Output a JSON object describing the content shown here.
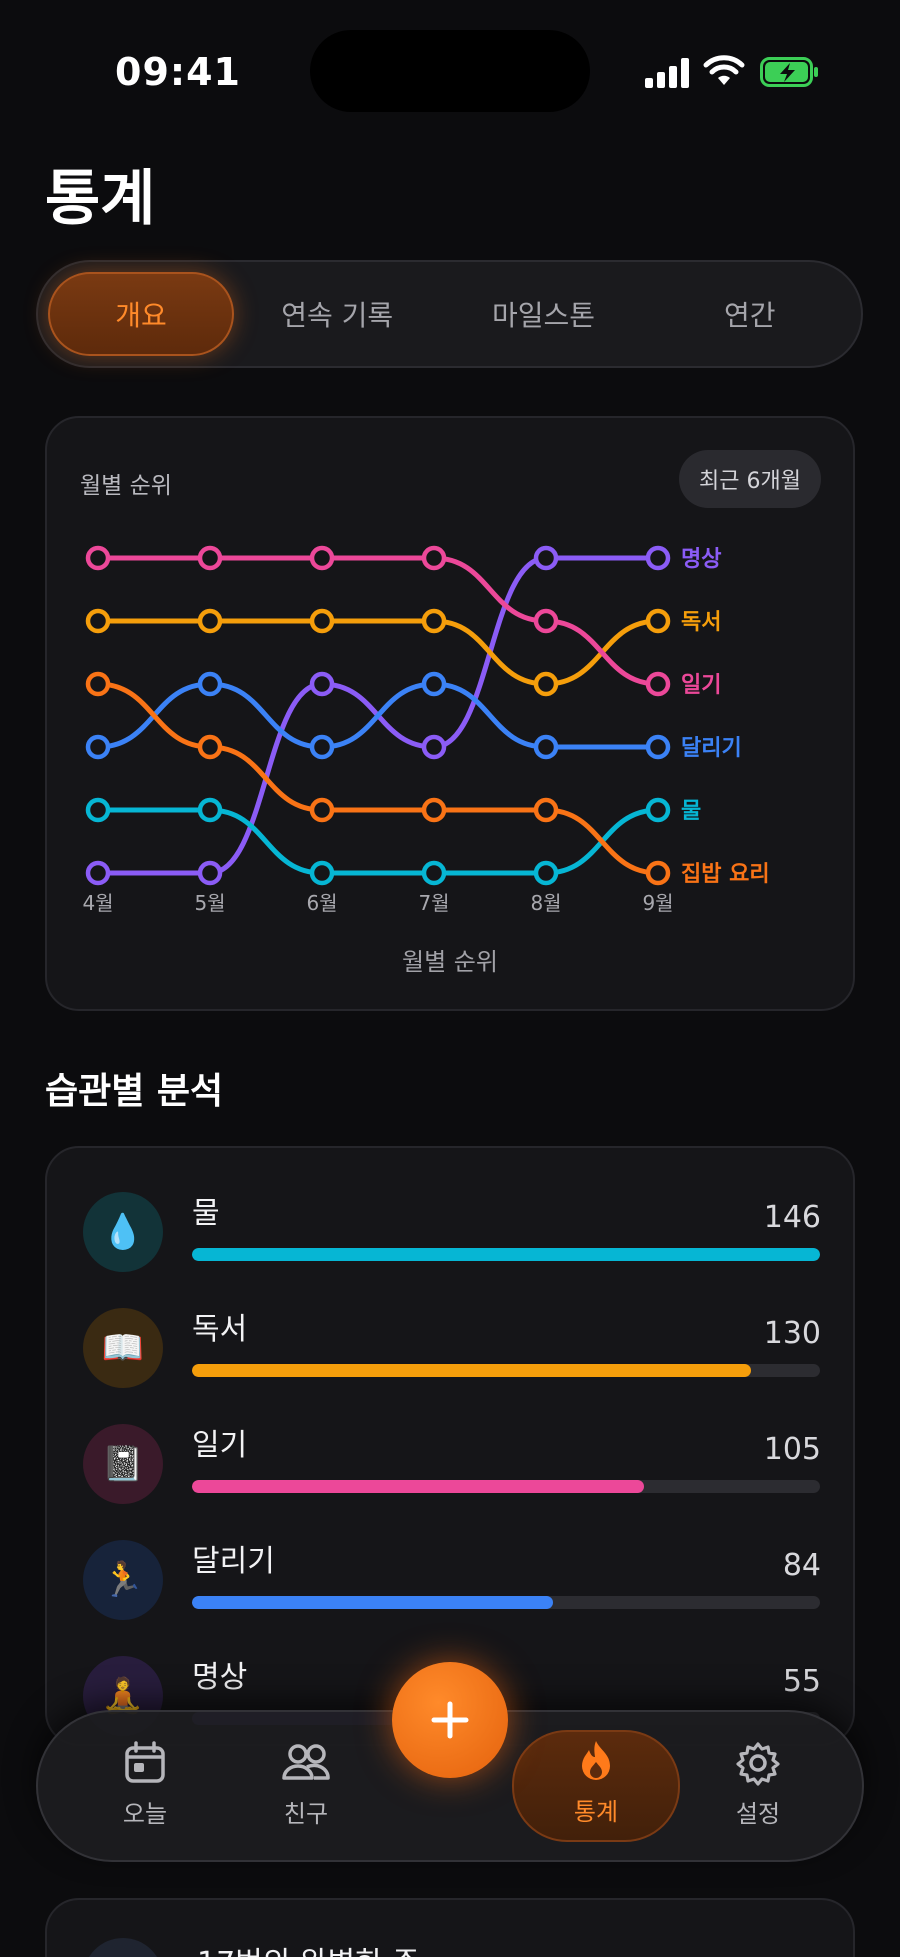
{
  "status": {
    "time": "09:41"
  },
  "page": {
    "title": "통계"
  },
  "tabs": [
    {
      "label": "개요",
      "active": true
    },
    {
      "label": "연속 기록",
      "active": false
    },
    {
      "label": "마일스톤",
      "active": false
    },
    {
      "label": "연간",
      "active": false
    }
  ],
  "chart_card": {
    "title": "월별 순위",
    "range_pill": "최근 6개월",
    "footer_label": "월별 순위"
  },
  "chart_data": {
    "type": "line",
    "title": "월별 순위",
    "xlabel": "월별 순위",
    "ylabel": "",
    "categories": [
      "4월",
      "5월",
      "6월",
      "7월",
      "8월",
      "9월"
    ],
    "y_axis": "rank (1 = top)",
    "ylim": [
      1,
      6
    ],
    "grid": false,
    "legend": "right-end labels",
    "series": [
      {
        "name": "명상",
        "color": "#8b5cf6",
        "values": [
          6,
          6,
          3,
          4,
          1,
          1
        ]
      },
      {
        "name": "독서",
        "color": "#f59e0b",
        "values": [
          2,
          2,
          2,
          2,
          3,
          2
        ]
      },
      {
        "name": "일기",
        "color": "#ec4899",
        "values": [
          1,
          1,
          1,
          1,
          2,
          3
        ]
      },
      {
        "name": "달리기",
        "color": "#3b82f6",
        "values": [
          4,
          3,
          4,
          3,
          4,
          4
        ]
      },
      {
        "name": "물",
        "color": "#06b6d4",
        "values": [
          5,
          5,
          6,
          6,
          6,
          5
        ]
      },
      {
        "name": "집밥 요리",
        "color": "#f97316",
        "values": [
          3,
          4,
          5,
          5,
          5,
          6
        ]
      }
    ]
  },
  "habits_section": {
    "title": "습관별 분석"
  },
  "habits": [
    {
      "name": "물",
      "value": 146,
      "fraction": 1.0,
      "color": "#06b6d4",
      "icon": "💧",
      "icon_name": "water-drop-icon",
      "icon_bg": "#123338"
    },
    {
      "name": "독서",
      "value": 130,
      "fraction": 0.89,
      "color": "#f59e0b",
      "icon": "📖",
      "icon_name": "book-icon",
      "icon_bg": "#3a2a12"
    },
    {
      "name": "일기",
      "value": 105,
      "fraction": 0.72,
      "color": "#ec4899",
      "icon": "📓",
      "icon_name": "notebook-icon",
      "icon_bg": "#3a1a2a"
    },
    {
      "name": "달리기",
      "value": 84,
      "fraction": 0.575,
      "color": "#3b82f6",
      "icon": "🏃",
      "icon_name": "runner-icon",
      "icon_bg": "#17233a"
    },
    {
      "name": "명상",
      "value": 55,
      "fraction": 0.377,
      "color": "#8b5cf6",
      "icon": "🧘",
      "icon_name": "meditation-icon",
      "icon_bg": "#281d3d"
    }
  ],
  "below": {
    "card_text": "17번의 완벽한 주"
  },
  "tabbar": {
    "items": [
      {
        "label": "오늘",
        "icon": "calendar-icon"
      },
      {
        "label": "친구",
        "icon": "friends-icon"
      },
      {
        "label": "통계",
        "icon": "flame-icon",
        "active": true
      },
      {
        "label": "설정",
        "icon": "gear-icon"
      }
    ],
    "fab_icon": "plus-icon"
  },
  "colors": {
    "accent": "#ff8a2a",
    "background": "#0c0c0e",
    "card": "#151518"
  }
}
